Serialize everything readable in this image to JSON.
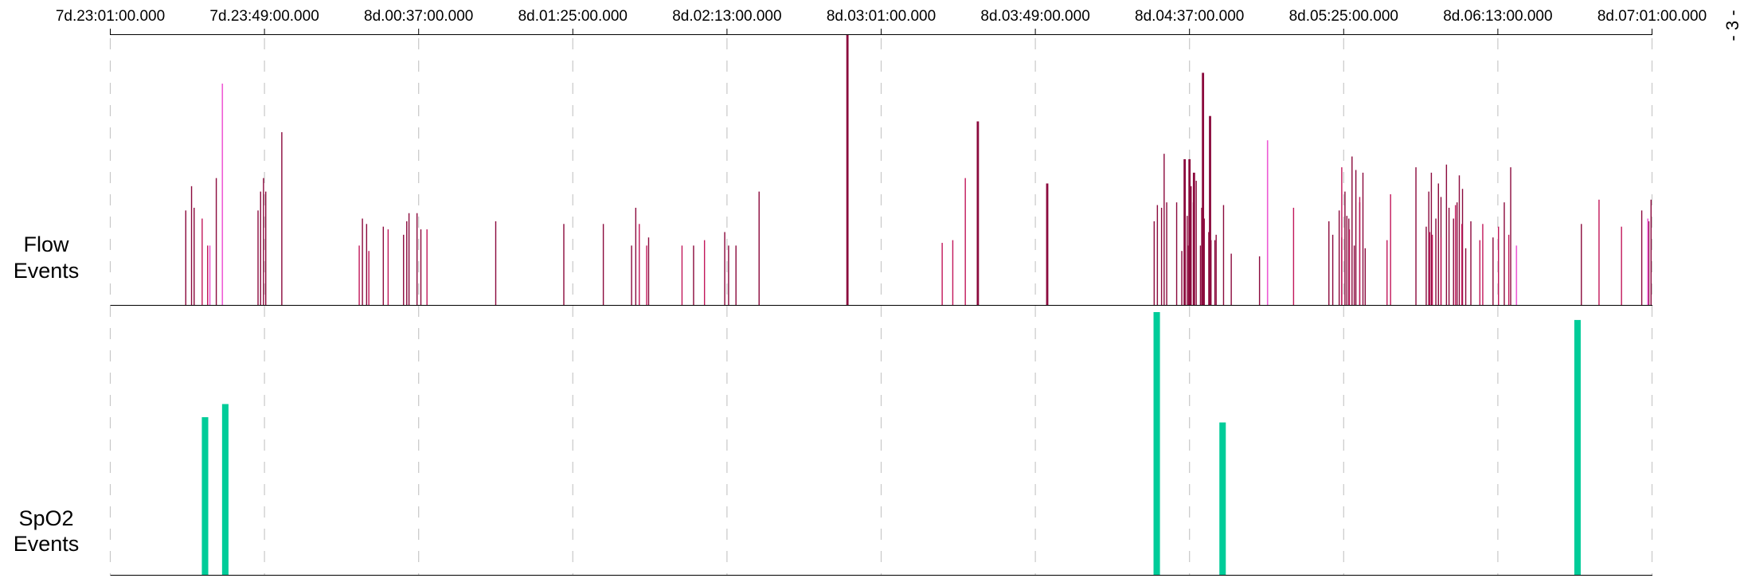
{
  "page_number": "- 3 -",
  "chart_data": {
    "type": "bar",
    "x_ticks": [
      "7d.23:01:00.000",
      "7d.23:49:00.000",
      "8d.00:37:00.000",
      "8d.01:25:00.000",
      "8d.02:13:00.000",
      "8d.03:01:00.000",
      "8d.03:49:00.000",
      "8d.04:37:00.000",
      "8d.05:25:00.000",
      "8d.06:13:00.000",
      "8d.07:01:00.000"
    ],
    "x_range_minutes": [
      0,
      480
    ],
    "grid": true,
    "colors": {
      "flow_dark": "#8b0a3d",
      "flow_light": "#c2185b",
      "flow_pink": "#ee5ad5",
      "spo2": "#00cc99",
      "axis": "#000000",
      "grid": "#c8c8c8"
    },
    "panels": [
      {
        "key": "flow",
        "label_lines": [
          "Flow",
          "Events"
        ],
        "ylim": [
          0,
          1
        ],
        "series": [
          {
            "color_key": "flow_dark",
            "bar_width_minutes": 0.35,
            "points": [
              [
                23.5,
                0.35
              ],
              [
                25.3,
                0.44
              ],
              [
                26.1,
                0.36
              ],
              [
                33.0,
                0.47
              ],
              [
                46.0,
                0.35
              ],
              [
                46.8,
                0.42
              ],
              [
                47.7,
                0.47
              ],
              [
                48.4,
                0.42
              ],
              [
                53.4,
                0.64
              ],
              [
                78.5,
                0.32
              ],
              [
                79.8,
                0.3
              ],
              [
                85.0,
                0.29
              ],
              [
                91.3,
                0.26
              ],
              [
                92.3,
                0.31
              ],
              [
                93.0,
                0.34
              ],
              [
                95.5,
                0.34
              ],
              [
                96.7,
                0.28
              ],
              [
                120.0,
                0.31
              ],
              [
                141.2,
                0.3
              ],
              [
                153.5,
                0.3
              ],
              [
                162.3,
                0.22
              ],
              [
                163.6,
                0.36
              ],
              [
                167.6,
                0.25
              ],
              [
                181.6,
                0.22
              ],
              [
                191.3,
                0.27
              ],
              [
                192.5,
                0.22
              ],
              [
                194.8,
                0.22
              ],
              [
                202.0,
                0.42
              ],
              [
                325.0,
                0.31
              ],
              [
                326.0,
                0.37
              ],
              [
                327.3,
                0.36
              ],
              [
                328.1,
                0.56
              ],
              [
                328.9,
                0.38
              ],
              [
                332.0,
                0.38
              ],
              [
                333.6,
                0.2
              ],
              [
                334.5,
                0.3
              ],
              [
                335.3,
                0.33
              ],
              [
                335.7,
                0.22
              ],
              [
                336.5,
                0.44
              ],
              [
                337.2,
                0.38
              ],
              [
                338.1,
                0.46
              ],
              [
                339.4,
                0.22
              ],
              [
                339.8,
                0.36
              ],
              [
                340.6,
                0.32
              ],
              [
                342.0,
                0.27
              ],
              [
                342.7,
                0.24
              ],
              [
                343.9,
                0.24
              ],
              [
                344.3,
                0.26
              ],
              [
                346.6,
                0.37
              ],
              [
                349.0,
                0.19
              ],
              [
                357.8,
                0.18
              ],
              [
                379.4,
                0.31
              ],
              [
                380.6,
                0.26
              ],
              [
                382.6,
                0.35
              ],
              [
                383.4,
                0.25
              ],
              [
                384.4,
                0.42
              ],
              [
                385.0,
                0.33
              ],
              [
                385.6,
                0.32
              ],
              [
                387.3,
                0.22
              ],
              [
                386.6,
                0.55
              ],
              [
                387.8,
                0.5
              ],
              [
                389.0,
                0.38
              ],
              [
                390.0,
                0.49
              ],
              [
                390.7,
                0.21
              ],
              [
                406.5,
                0.51
              ],
              [
                409.7,
                0.29
              ],
              [
                410.5,
                0.42
              ],
              [
                411.3,
                0.49
              ],
              [
                412.7,
                0.32
              ],
              [
                413.5,
                0.45
              ],
              [
                414.3,
                0.4
              ],
              [
                416.0,
                0.52
              ],
              [
                416.8,
                0.36
              ],
              [
                418.2,
                0.32
              ],
              [
                419.3,
                0.38
              ],
              [
                420.0,
                0.48
              ],
              [
                421.0,
                0.43
              ],
              [
                422.0,
                0.21
              ],
              [
                423.6,
                0.31
              ],
              [
                430.5,
                0.25
              ],
              [
                434.0,
                0.38
              ],
              [
                436.0,
                0.51
              ],
              [
                458.0,
                0.3
              ],
              [
                476.8,
                0.35
              ],
              [
                479.0,
                0.31
              ],
              [
                479.7,
                0.39
              ]
            ]
          },
          {
            "color_key": "flow_dark",
            "bar_width_minutes": 0.7,
            "points": [
              [
                229.5,
                1.0
              ],
              [
                270.1,
                0.68
              ],
              [
                291.7,
                0.45
              ],
              [
                334.5,
                0.54
              ],
              [
                336.0,
                0.54
              ],
              [
                337.4,
                0.49
              ],
              [
                340.2,
                0.86
              ],
              [
                342.4,
                0.7
              ]
            ]
          },
          {
            "color_key": "flow_light",
            "bar_width_minutes": 0.35,
            "points": [
              [
                28.6,
                0.32
              ],
              [
                30.3,
                0.22
              ],
              [
                77.5,
                0.22
              ],
              [
                80.5,
                0.2
              ],
              [
                86.5,
                0.28
              ],
              [
                98.6,
                0.28
              ],
              [
                164.7,
                0.3
              ],
              [
                167.0,
                0.22
              ],
              [
                178.0,
                0.22
              ],
              [
                185.0,
                0.24
              ],
              [
                259.0,
                0.23
              ],
              [
                262.3,
                0.24
              ],
              [
                266.2,
                0.47
              ],
              [
                368.4,
                0.36
              ],
              [
                383.4,
                0.51
              ],
              [
                385.8,
                0.28
              ],
              [
                389.0,
                0.4
              ],
              [
                397.5,
                0.24
              ],
              [
                398.6,
                0.41
              ],
              [
                410.8,
                0.27
              ],
              [
                411.6,
                0.26
              ],
              [
                414.3,
                0.25
              ],
              [
                418.8,
                0.37
              ],
              [
                420.8,
                0.3
              ],
              [
                426.4,
                0.24
              ],
              [
                427.3,
                0.3
              ],
              [
                432.2,
                0.29
              ],
              [
                435.4,
                0.26
              ],
              [
                463.5,
                0.39
              ],
              [
                470.5,
                0.29
              ]
            ]
          },
          {
            "color_key": "flow_pink",
            "bar_width_minutes": 0.4,
            "points": [
              [
                31.0,
                0.22
              ],
              [
                34.9,
                0.82
              ],
              [
                360.3,
                0.61
              ],
              [
                437.8,
                0.22
              ],
              [
                478.7,
                0.32
              ]
            ]
          }
        ]
      },
      {
        "key": "spo2",
        "label_lines": [
          "SpO2",
          "Events"
        ],
        "ylim": [
          0,
          1
        ],
        "series": [
          {
            "color_key": "spo2",
            "bar_width_minutes": 2,
            "points": [
              [
                29.5,
                0.6
              ],
              [
                35.8,
                0.65
              ],
              [
                325.8,
                1.0
              ],
              [
                346.3,
                0.58
              ],
              [
                456.8,
                0.97
              ]
            ]
          }
        ]
      }
    ]
  }
}
